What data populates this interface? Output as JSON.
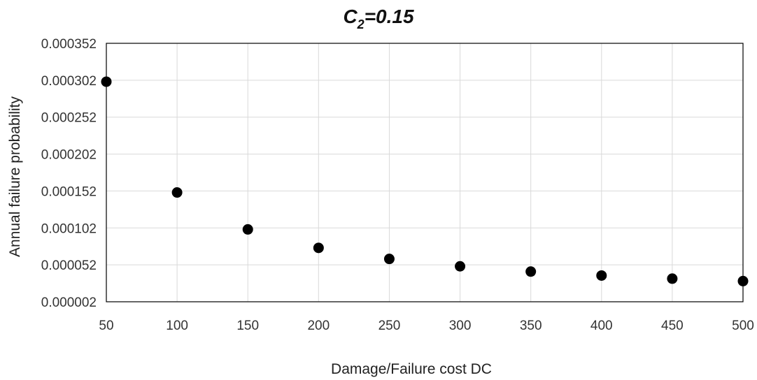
{
  "chart_data": {
    "type": "scatter",
    "title": {
      "main": "C",
      "subscript": "2",
      "suffix": "=0.15"
    },
    "xlabel": "Damage/Failure cost DC",
    "ylabel": "Annual failure probability",
    "x_ticks": [
      "50",
      "100",
      "150",
      "200",
      "250",
      "300",
      "350",
      "400",
      "450",
      "500"
    ],
    "y_ticks": [
      "0.000002",
      "0.000052",
      "0.000102",
      "0.000152",
      "0.000202",
      "0.000252",
      "0.000302",
      "0.000352"
    ],
    "xlim": [
      50,
      500
    ],
    "ylim": [
      2e-06,
      0.000352
    ],
    "grid": true,
    "legend": "none",
    "marker_color": "#000000",
    "series": [
      {
        "x": [
          50,
          100,
          150,
          200,
          250,
          300,
          350,
          400,
          450,
          500
        ],
        "y": [
          0.0003,
          0.00015,
          0.0001,
          7.5e-05,
          6e-05,
          5e-05,
          4.29e-05,
          3.75e-05,
          3.33e-05,
          3e-05
        ]
      }
    ]
  }
}
